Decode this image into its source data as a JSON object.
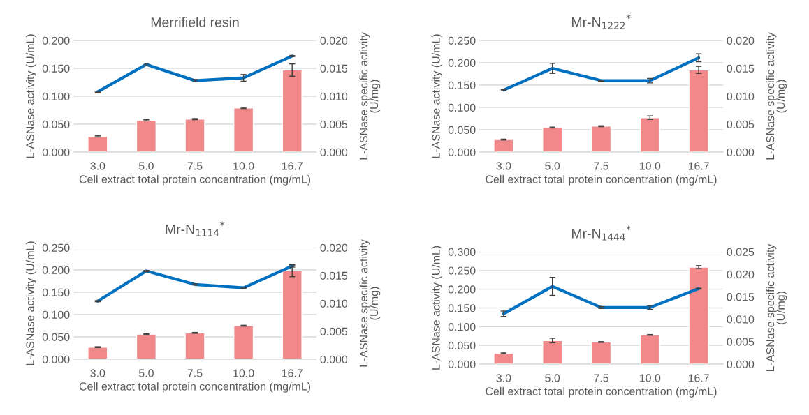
{
  "chart_data": [
    {
      "type": "bar",
      "title": "Merrifield resin",
      "xlabel": "Cell extract total protein concentration (mg/mL)",
      "ylabel": "L-ASNase activity (U/mL)",
      "y2label": "L-ASNase specific activity\n(U/mg)",
      "categories": [
        "3.0",
        "5.0",
        "7.5",
        "10.0",
        "16.7"
      ],
      "ylim": [
        0,
        0.2
      ],
      "yticks": [
        {
          "value": 0,
          "label": "0.000"
        },
        {
          "value": 0.05,
          "label": "0.050"
        },
        {
          "value": 0.1,
          "label": "0.100"
        },
        {
          "value": 0.15,
          "label": "0.150"
        },
        {
          "value": 0.2,
          "label": "0.200"
        }
      ],
      "y2lim": [
        0,
        0.02
      ],
      "y2ticks": [
        {
          "value": 0,
          "label": "0.000"
        },
        {
          "value": 0.005,
          "label": "0.005"
        },
        {
          "value": 0.01,
          "label": "0.010"
        },
        {
          "value": 0.015,
          "label": "0.015"
        },
        {
          "value": 0.02,
          "label": "0.020"
        }
      ],
      "grid": "y",
      "series": [
        {
          "color": "#f1888a",
          "values": [
            0.028,
            0.057,
            0.059,
            0.079,
            0.147
          ],
          "errors": [
            0.001,
            0.001,
            0.001,
            0.001,
            0.011
          ]
        },
        {
          "type": "line",
          "axis": "y2",
          "color": "#0070c0",
          "values": [
            0.0108,
            0.0157,
            0.0128,
            0.0133,
            0.0172
          ],
          "errors": [
            0.0001,
            0.0002,
            0.0002,
            0.0006,
            0.0001
          ]
        }
      ]
    },
    {
      "type": "bar",
      "title": "Mr-N$_{1222}$$^{*}$",
      "xlabel": "Cell extract total protein concentration (mg/mL)",
      "ylabel": "L-ASNase activity (U/mL)",
      "y2label": "L-ASNase specific activity\n(U/mg)",
      "categories": [
        "3.0",
        "5.0",
        "7.5",
        "10.0",
        "16.7"
      ],
      "ylim": [
        0,
        0.25
      ],
      "yticks": [
        {
          "value": 0,
          "label": "0.000"
        },
        {
          "value": 0.05,
          "label": "0.050"
        },
        {
          "value": 0.1,
          "label": "0.100"
        },
        {
          "value": 0.15,
          "label": "0.150"
        },
        {
          "value": 0.2,
          "label": "0.200"
        },
        {
          "value": 0.25,
          "label": "0.250"
        }
      ],
      "y2lim": [
        0,
        0.02
      ],
      "y2ticks": [
        {
          "value": 0,
          "label": "0.000"
        },
        {
          "value": 0.005,
          "label": "0.005"
        },
        {
          "value": 0.01,
          "label": "0.010"
        },
        {
          "value": 0.015,
          "label": "0.015"
        },
        {
          "value": 0.02,
          "label": "0.020"
        }
      ],
      "grid": "y",
      "series": [
        {
          "color": "#f1888a",
          "values": [
            0.028,
            0.055,
            0.058,
            0.077,
            0.184
          ],
          "errors": [
            0.001,
            0.001,
            0.001,
            0.004,
            0.008
          ]
        },
        {
          "type": "line",
          "axis": "y2",
          "color": "#0070c0",
          "values": [
            0.0111,
            0.015,
            0.0128,
            0.0128,
            0.0169
          ],
          "errors": [
            0.0001,
            0.0009,
            0.0001,
            0.0004,
            0.0007
          ]
        }
      ]
    },
    {
      "type": "bar",
      "title": "Mr-N$_{1114}$$^{*}$",
      "xlabel": "Cell extract total protein concentration (mg/mL)",
      "ylabel": "L-ASNase activity (U/mL)",
      "y2label": "L-ASNase specific activity\n(U/mg)",
      "categories": [
        "3.0",
        "5.0",
        "7.5",
        "10.0",
        "16.7"
      ],
      "ylim": [
        0,
        0.25
      ],
      "yticks": [
        {
          "value": 0,
          "label": "0.000"
        },
        {
          "value": 0.05,
          "label": "0.050"
        },
        {
          "value": 0.1,
          "label": "0.100"
        },
        {
          "value": 0.15,
          "label": "0.150"
        },
        {
          "value": 0.2,
          "label": "0.200"
        },
        {
          "value": 0.25,
          "label": "0.250"
        }
      ],
      "y2lim": [
        0,
        0.02
      ],
      "y2ticks": [
        {
          "value": 0,
          "label": "0.000"
        },
        {
          "value": 0.005,
          "label": "0.005"
        },
        {
          "value": 0.01,
          "label": "0.010"
        },
        {
          "value": 0.015,
          "label": "0.015"
        },
        {
          "value": 0.02,
          "label": "0.020"
        }
      ],
      "grid": "y",
      "series": [
        {
          "color": "#f1888a",
          "values": [
            0.027,
            0.056,
            0.059,
            0.075,
            0.198
          ],
          "errors": [
            0.001,
            0.001,
            0.001,
            0.001,
            0.013
          ]
        },
        {
          "type": "line",
          "axis": "y2",
          "color": "#0070c0",
          "values": [
            0.0104,
            0.0158,
            0.0134,
            0.0128,
            0.0167
          ],
          "errors": [
            0.0001,
            0.0001,
            0.0001,
            0.0001,
            0.0002
          ]
        }
      ]
    },
    {
      "type": "bar",
      "title": "Mr-N$_{1444}$$^{*}$",
      "xlabel": "Cell extract total protein concentration (mg/mL)",
      "ylabel": "L-ASNase activity (U/mL)",
      "y2label": "L-ASNase specific activity\n(U/mg)",
      "categories": [
        "3.0",
        "5.0",
        "7.5",
        "10.0",
        "16.7"
      ],
      "ylim": [
        0,
        0.3
      ],
      "yticks": [
        {
          "value": 0,
          "label": "0.000"
        },
        {
          "value": 0.05,
          "label": "0.050"
        },
        {
          "value": 0.1,
          "label": "0.100"
        },
        {
          "value": 0.15,
          "label": "0.150"
        },
        {
          "value": 0.2,
          "label": "0.200"
        },
        {
          "value": 0.25,
          "label": "0.250"
        },
        {
          "value": 0.3,
          "label": "0.300"
        }
      ],
      "y2lim": [
        0,
        0.025
      ],
      "y2ticks": [
        {
          "value": 0,
          "label": "0.000"
        },
        {
          "value": 0.005,
          "label": "0.005"
        },
        {
          "value": 0.01,
          "label": "0.010"
        },
        {
          "value": 0.015,
          "label": "0.015"
        },
        {
          "value": 0.02,
          "label": "0.020"
        },
        {
          "value": 0.025,
          "label": "0.025"
        }
      ],
      "grid": "y",
      "series": [
        {
          "color": "#f1888a",
          "values": [
            0.029,
            0.063,
            0.059,
            0.078,
            0.259
          ],
          "errors": [
            0.001,
            0.006,
            0.001,
            0.001,
            0.004
          ]
        },
        {
          "type": "line",
          "axis": "y2",
          "color": "#0070c0",
          "values": [
            0.0112,
            0.0173,
            0.0126,
            0.0126,
            0.0168
          ],
          "errors": [
            0.0006,
            0.002,
            0.0002,
            0.0004,
            0.0001
          ]
        }
      ]
    }
  ]
}
